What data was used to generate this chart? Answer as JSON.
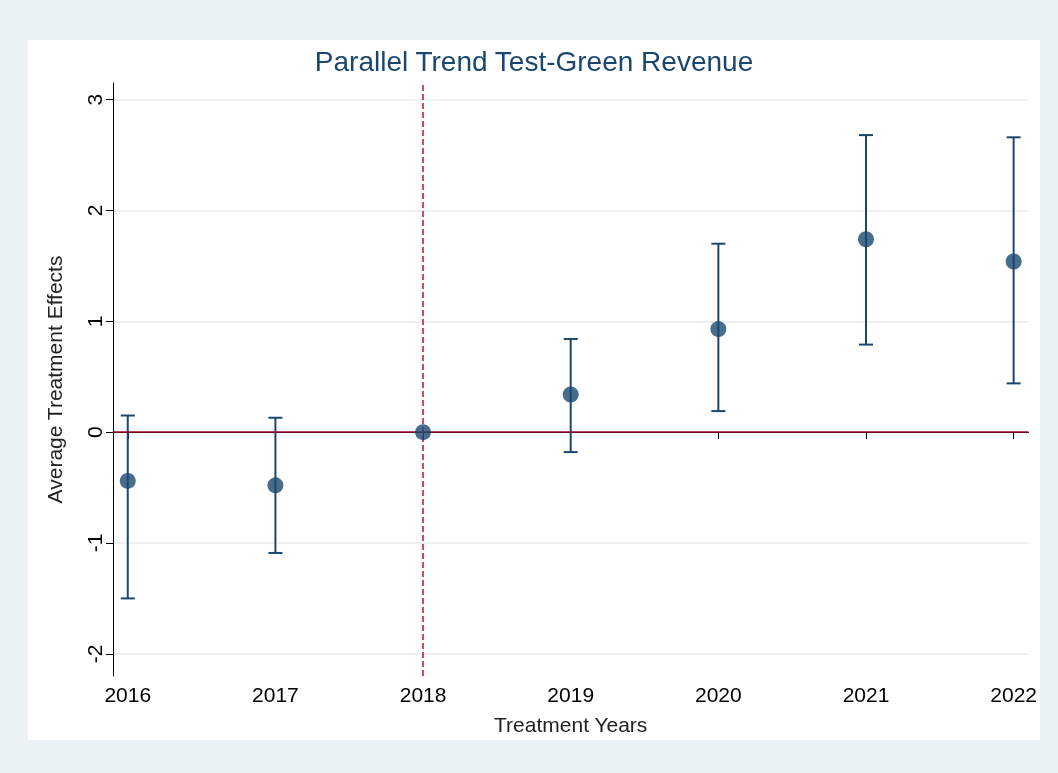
{
  "chart_data": {
    "type": "scatter",
    "title": "Parallel Trend Test-Green Revenue",
    "xlabel": "Treatment Years",
    "ylabel": "Average Treatment Effects",
    "x": [
      2016,
      2017,
      2018,
      2019,
      2020,
      2021,
      2022
    ],
    "series": [
      {
        "color": "#1a476f",
        "values": [
          -0.44,
          -0.48,
          0,
          0.34,
          0.93,
          1.74,
          1.54
        ],
        "errors": [
          [
            -1.5,
            0.15
          ],
          [
            -1.09,
            0.13
          ],
          null,
          [
            -0.18,
            0.84
          ],
          [
            0.19,
            1.7
          ],
          [
            0.79,
            2.68
          ],
          [
            0.44,
            2.66
          ]
        ]
      }
    ],
    "xlim": [
      2015.9,
      2022.1
    ],
    "xticks": [
      2016,
      2017,
      2018,
      2019,
      2020,
      2021,
      2022
    ],
    "ylim": [
      -2.2,
      3.15
    ],
    "yticks": [
      -2,
      -1,
      0,
      1,
      2,
      3
    ],
    "grid": "y",
    "marker": "circle",
    "ref_lines": [
      {
        "axis": "y",
        "value": 0,
        "color": "#990c2d",
        "line_style": "solid"
      },
      {
        "axis": "x",
        "value": 2018,
        "color": "#c0102e",
        "line_style": "dashed"
      }
    ]
  }
}
